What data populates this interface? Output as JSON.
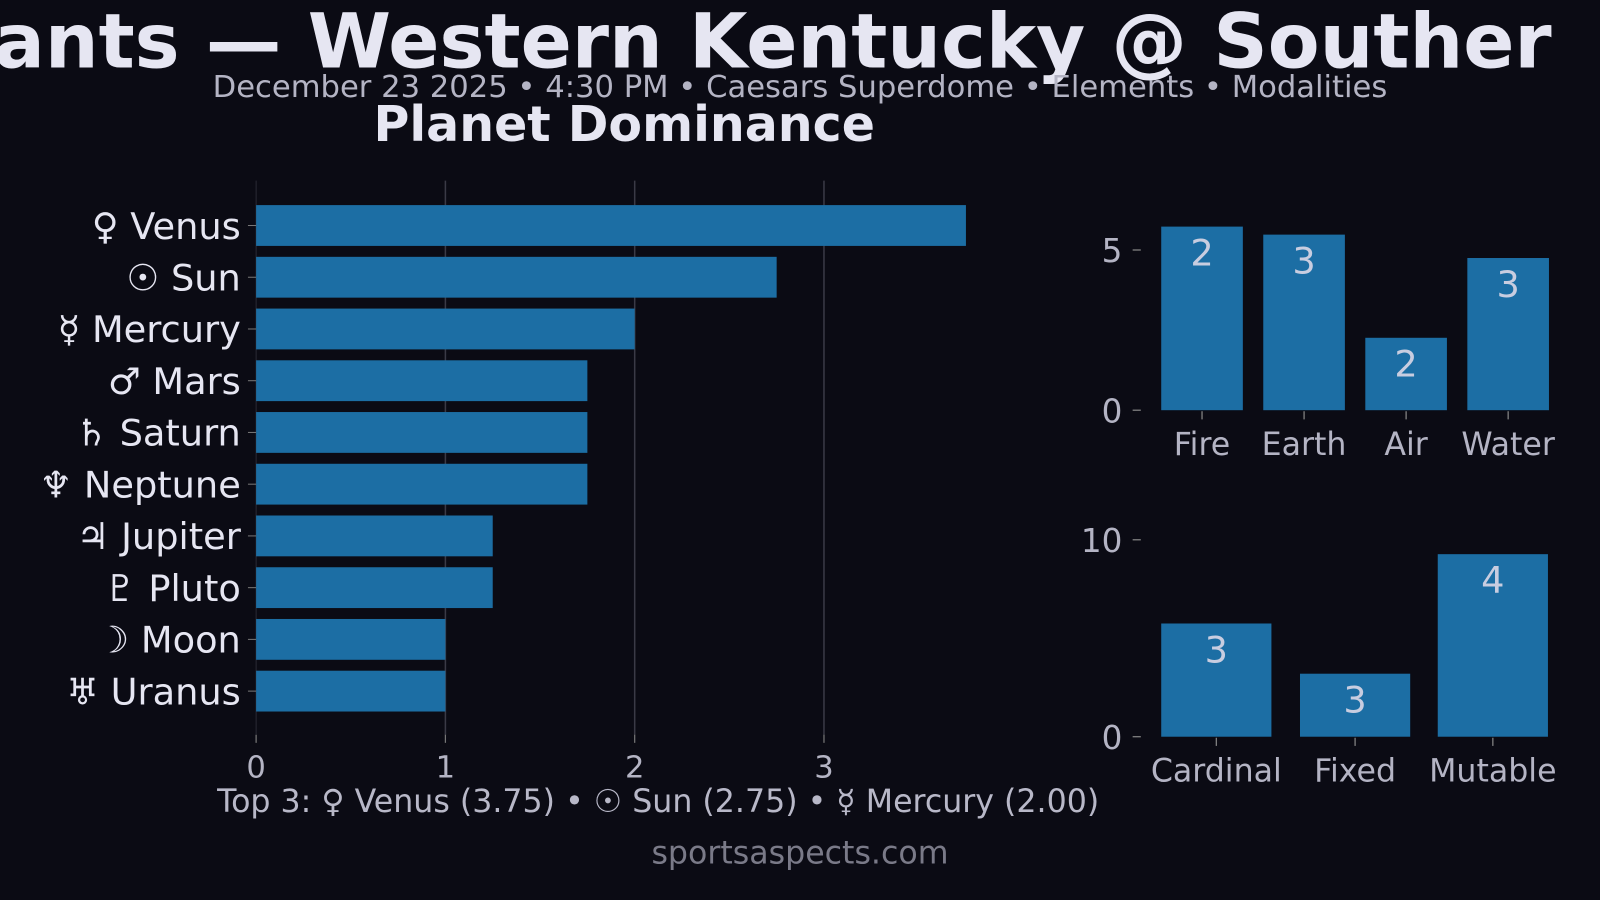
{
  "header": {
    "title": "ants — Western Kentucky @ Souther",
    "subtitle": "December 23 2025 • 4:30 PM • Caesars Superdome • Elements • Modalities"
  },
  "colors": {
    "background": "#0b0b14",
    "bar": "#1c6ea4",
    "text": "#e6e6f2",
    "muted": "#b4b4c4"
  },
  "chart_data": [
    {
      "type": "bar",
      "orientation": "horizontal",
      "title": "Planet Dominance",
      "categories": [
        "♀ Venus",
        "☉ Sun",
        "☿ Mercury",
        "♂ Mars",
        "♄ Saturn",
        "♆ Neptune",
        "♃ Jupiter",
        "♇ Pluto",
        "☽ Moon",
        "♅ Uranus"
      ],
      "values": [
        3.75,
        2.75,
        2.0,
        1.75,
        1.75,
        1.75,
        1.25,
        1.25,
        1.0,
        1.0
      ],
      "xticks": [
        0,
        1,
        2,
        3
      ],
      "xlim": [
        0,
        4.0
      ],
      "grid": "vertical"
    },
    {
      "type": "bar",
      "categories": [
        "Fire",
        "Earth",
        "Air",
        "Water"
      ],
      "values": [
        5.73,
        5.48,
        2.26,
        4.75
      ],
      "data_labels": [
        "2",
        "3",
        "2",
        "3"
      ],
      "yticks": [
        0,
        5
      ],
      "ylim": [
        0,
        6.0
      ]
    },
    {
      "type": "bar",
      "categories": [
        "Cardinal",
        "Fixed",
        "Mutable"
      ],
      "values": [
        5.75,
        3.2,
        9.27
      ],
      "data_labels": [
        "3",
        "3",
        "4"
      ],
      "yticks": [
        0,
        10
      ],
      "ylim": [
        0,
        10.3
      ]
    }
  ],
  "summary": "Top 3: ♀ Venus (3.75) • ☉ Sun (2.75) • ☿ Mercury (2.00)",
  "footer": "sportsaspects.com"
}
